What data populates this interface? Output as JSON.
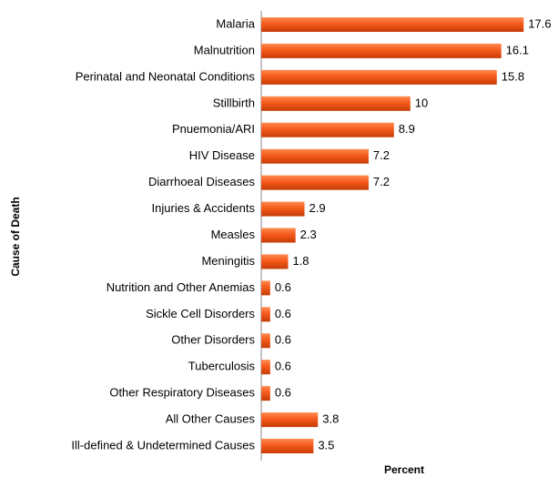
{
  "chart_data": {
    "type": "bar",
    "orientation": "horizontal",
    "xlabel": "Percent",
    "ylabel": "Cause of Death",
    "categories": [
      "Malaria",
      "Malnutrition",
      "Perinatal and Neonatal Conditions",
      "Stillbirth",
      "Pnuemonia/ARI",
      "HIV Disease",
      "Diarrhoeal Diseases",
      "Injuries & Accidents",
      "Measles",
      "Meningitis",
      "Nutrition and Other Anemias",
      "Sickle Cell Disorders",
      "Other Disorders",
      "Tuberculosis",
      "Other Respiratory Diseases",
      "All Other Causes",
      "Ill-defined & Undetermined Causes"
    ],
    "values": [
      17.6,
      16.1,
      15.8,
      10,
      8.9,
      7.2,
      7.2,
      2.9,
      2.3,
      1.8,
      0.6,
      0.6,
      0.6,
      0.6,
      0.6,
      3.8,
      3.5
    ],
    "color": "#f55a1a",
    "xlim": [
      0,
      18.5
    ],
    "grid": false
  }
}
